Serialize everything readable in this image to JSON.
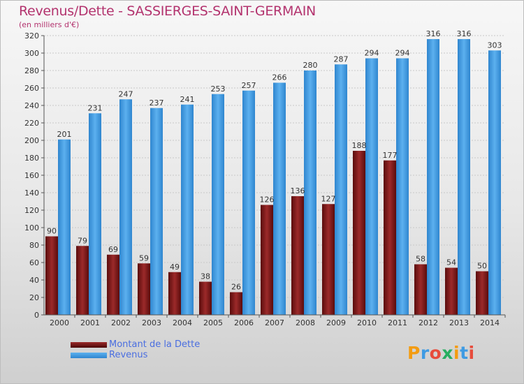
{
  "chart_data": {
    "type": "bar",
    "title": "Revenus/Dette - SASSIERGES-SAINT-GERMAIN",
    "subtitle": "(en milliers d'€)",
    "categories": [
      "2000",
      "2001",
      "2002",
      "2003",
      "2004",
      "2005",
      "2006",
      "2007",
      "2008",
      "2009",
      "2010",
      "2011",
      "2012",
      "2013",
      "2014"
    ],
    "series": [
      {
        "name": "Montant de la Dette",
        "color": "#8b1a1a",
        "values": [
          90,
          79,
          69,
          59,
          49,
          38,
          26,
          126,
          136,
          127,
          188,
          177,
          58,
          54,
          50
        ]
      },
      {
        "name": "Revenus",
        "color": "#3f9be3",
        "values": [
          201,
          231,
          247,
          237,
          241,
          253,
          257,
          266,
          280,
          287,
          294,
          294,
          316,
          316,
          303
        ]
      }
    ],
    "ylim": [
      0,
      320
    ],
    "yticks": [
      0,
      20,
      40,
      60,
      80,
      100,
      120,
      140,
      160,
      180,
      200,
      220,
      240,
      260,
      280,
      300,
      320
    ],
    "grid": true,
    "legend_position": "bottom-left"
  },
  "logo": {
    "letters": [
      "P",
      "r",
      "o",
      "x",
      "i",
      "t",
      "i"
    ],
    "colors": [
      "#f39c12",
      "#3f9be3",
      "#e74c3c",
      "#27ae60",
      "#f39c12",
      "#3f9be3",
      "#e74c3c"
    ]
  }
}
